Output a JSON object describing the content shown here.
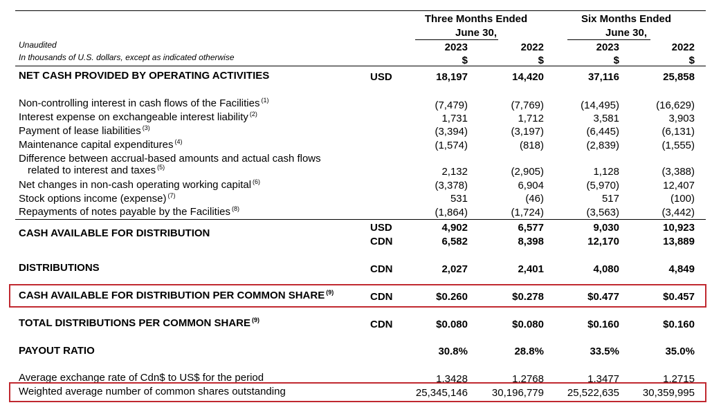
{
  "header": {
    "three_months": "Three Months Ended",
    "six_months": "Six Months Ended",
    "june30": "June 30,",
    "unaudited": "Unaudited",
    "units_note": "In thousands of U.S. dollars, except as indicated otherwise",
    "years": [
      "2023",
      "2022",
      "2023",
      "2022"
    ],
    "currency_symbol": "$"
  },
  "rows": {
    "ncpoa": {
      "label": "NET CASH PROVIDED BY OPERATING ACTIVITIES",
      "cur": "USD",
      "vals": [
        "18,197",
        "14,420",
        "37,116",
        "25,858"
      ]
    },
    "nci": {
      "label": "Non-controlling interest in cash flows of the Facilities",
      "note": "(1)",
      "vals": [
        "(7,479)",
        "(7,769)",
        "(14,495)",
        "(16,629)"
      ]
    },
    "int": {
      "label": "Interest expense on exchangeable interest liability",
      "note": "(2)",
      "vals": [
        "1,731",
        "1,712",
        "3,581",
        "3,903"
      ]
    },
    "lease": {
      "label": "Payment of lease liabilities",
      "note": "(3)",
      "vals": [
        "(3,394)",
        "(3,197)",
        "(6,445)",
        "(6,131)"
      ]
    },
    "maint": {
      "label": "Maintenance capital expenditures",
      "note": "(4)",
      "vals": [
        "(1,574)",
        "(818)",
        "(2,839)",
        "(1,555)"
      ]
    },
    "diff": {
      "label": "Difference between accrual-based amounts and actual cash flows",
      "label2": "related to interest and taxes",
      "note": "(5)",
      "vals": [
        "2,132",
        "(2,905)",
        "1,128",
        "(3,388)"
      ]
    },
    "wc": {
      "label": "Net changes in non-cash operating working capital",
      "note": "(6)",
      "vals": [
        "(3,378)",
        "6,904",
        "(5,970)",
        "12,407"
      ]
    },
    "stock": {
      "label": "Stock options income (expense)",
      "note": "(7)",
      "vals": [
        "531",
        "(46)",
        "517",
        "(100)"
      ]
    },
    "notes": {
      "label": "Repayments of notes payable by the Facilities",
      "note": "(8)",
      "vals": [
        "(1,864)",
        "(1,724)",
        "(3,563)",
        "(3,442)"
      ]
    },
    "cafd": {
      "label": "CASH AVAILABLE FOR DISTRIBUTION",
      "cur1": "USD",
      "vals1": [
        "4,902",
        "6,577",
        "9,030",
        "10,923"
      ],
      "cur2": "CDN",
      "vals2": [
        "6,582",
        "8,398",
        "12,170",
        "13,889"
      ]
    },
    "dist": {
      "label": "DISTRIBUTIONS",
      "cur": "CDN",
      "vals": [
        "2,027",
        "2,401",
        "4,080",
        "4,849"
      ]
    },
    "cafdps": {
      "label": "CASH AVAILABLE FOR DISTRIBUTION PER COMMON SHARE",
      "note": "(9)",
      "cur": "CDN",
      "vals": [
        "$0.260",
        "$0.278",
        "$0.477",
        "$0.457"
      ]
    },
    "tdps": {
      "label": "TOTAL DISTRIBUTIONS PER COMMON SHARE",
      "note": "(9)",
      "cur": "CDN",
      "vals": [
        "$0.080",
        "$0.080",
        "$0.160",
        "$0.160"
      ]
    },
    "payout": {
      "label": "PAYOUT RATIO",
      "vals": [
        "30.8%",
        "28.8%",
        "33.5%",
        "35.0%"
      ]
    },
    "fx": {
      "label": "Average exchange rate of Cdn$ to US$ for the period",
      "vals": [
        "1.3428",
        "1.2768",
        "1.3477",
        "1.2715"
      ]
    },
    "shares": {
      "label": "Weighted average number of common shares outstanding",
      "vals": [
        "25,345,146",
        "30,196,779",
        "25,522,635",
        "30,359,995"
      ]
    }
  },
  "highlight_color": "#c0282f"
}
